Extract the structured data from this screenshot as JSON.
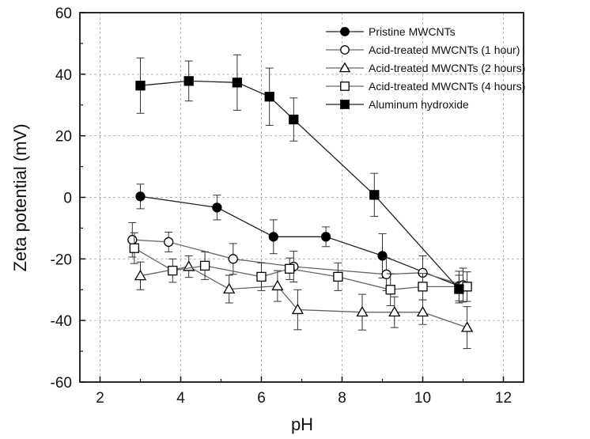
{
  "chart_data": {
    "type": "line",
    "title": "",
    "xlabel": "pH",
    "ylabel": "Zeta potential (mV)",
    "xlim": [
      1.5,
      12.5
    ],
    "ylim": [
      -60,
      60
    ],
    "xticks": [
      2,
      4,
      6,
      8,
      10,
      12
    ],
    "yticks": [
      -60,
      -40,
      -20,
      0,
      20,
      40,
      60
    ],
    "xtick_labels": [
      "2",
      "4",
      "6",
      "8",
      "10",
      "12"
    ],
    "ytick_labels": [
      "-60",
      "-40",
      "-20",
      "0",
      "20",
      "40",
      "60"
    ],
    "grid": true,
    "legend_position": "top-right",
    "series": [
      {
        "name": "Pristine MWCNTs",
        "marker": "filled-circle",
        "points": [
          {
            "x": 3.0,
            "y": 0.3,
            "err": 4.0
          },
          {
            "x": 4.9,
            "y": -3.3,
            "err": 4.0
          },
          {
            "x": 6.3,
            "y": -12.8,
            "err": 5.5
          },
          {
            "x": 7.6,
            "y": -12.8,
            "err": 3.2
          },
          {
            "x": 9.0,
            "y": -19.0,
            "err": 7.2
          },
          {
            "x": 10.9,
            "y": -28.8,
            "err": 4.8
          }
        ]
      },
      {
        "name": "Acid-treated MWCNTs (1 hour)",
        "marker": "open-circle",
        "points": [
          {
            "x": 2.8,
            "y": -13.8,
            "err": 5.6
          },
          {
            "x": 3.7,
            "y": -14.5,
            "err": 3.2
          },
          {
            "x": 5.3,
            "y": -20.0,
            "err": 5.0
          },
          {
            "x": 6.8,
            "y": -22.5,
            "err": 5.0
          },
          {
            "x": 9.1,
            "y": -25.0,
            "err": 5.3
          },
          {
            "x": 10.0,
            "y": -24.5,
            "err": 5.5
          },
          {
            "x": 11.0,
            "y": -28.5,
            "err": 5.5
          }
        ]
      },
      {
        "name": "Acid-treated MWCNTs (2 hours)",
        "marker": "open-triangle",
        "points": [
          {
            "x": 3.0,
            "y": -25.5,
            "err": 4.5
          },
          {
            "x": 4.2,
            "y": -22.5,
            "err": 3.5
          },
          {
            "x": 5.2,
            "y": -29.8,
            "err": 4.5
          },
          {
            "x": 6.4,
            "y": -28.8,
            "err": 5.0
          },
          {
            "x": 6.9,
            "y": -36.5,
            "err": 6.5
          },
          {
            "x": 8.5,
            "y": -37.3,
            "err": 5.8
          },
          {
            "x": 9.3,
            "y": -37.3,
            "err": 5.0
          },
          {
            "x": 10.0,
            "y": -37.3,
            "err": 4.0
          },
          {
            "x": 11.1,
            "y": -42.3,
            "err": 6.8
          }
        ]
      },
      {
        "name": "Acid-treated MWCNTs (4 hours)",
        "marker": "open-square",
        "points": [
          {
            "x": 2.85,
            "y": -16.5,
            "err": 5.0
          },
          {
            "x": 3.8,
            "y": -23.8,
            "err": 3.8
          },
          {
            "x": 4.6,
            "y": -22.2,
            "err": 4.5
          },
          {
            "x": 6.0,
            "y": -25.8,
            "err": 4.5
          },
          {
            "x": 6.7,
            "y": -23.2,
            "err": 3.5
          },
          {
            "x": 7.9,
            "y": -25.8,
            "err": 4.5
          },
          {
            "x": 9.2,
            "y": -30.0,
            "err": 5.2
          },
          {
            "x": 10.0,
            "y": -29.0,
            "err": 4.3
          },
          {
            "x": 11.1,
            "y": -29.0,
            "err": 4.8
          }
        ]
      },
      {
        "name": "Aluminum hydroxide",
        "marker": "filled-square",
        "points": [
          {
            "x": 3.0,
            "y": 36.3,
            "err": 9.0
          },
          {
            "x": 4.2,
            "y": 37.8,
            "err": 6.5
          },
          {
            "x": 5.4,
            "y": 37.3,
            "err": 9.0
          },
          {
            "x": 6.2,
            "y": 32.7,
            "err": 9.3
          },
          {
            "x": 6.8,
            "y": 25.3,
            "err": 7.0
          },
          {
            "x": 8.8,
            "y": 0.8,
            "err": 7.0
          },
          {
            "x": 10.9,
            "y": -29.8,
            "err": 4.5
          }
        ]
      }
    ]
  }
}
